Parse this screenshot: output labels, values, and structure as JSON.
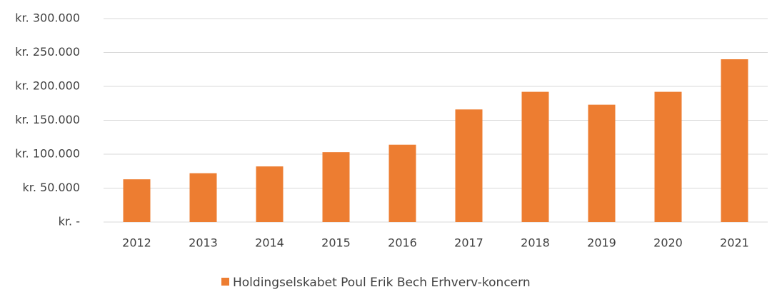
{
  "chart_data": {
    "type": "bar",
    "categories": [
      "2012",
      "2013",
      "2014",
      "2015",
      "2016",
      "2017",
      "2018",
      "2019",
      "2020",
      "2021"
    ],
    "series": [
      {
        "name": "Holdingselskabet Poul Erik Bech Erhverv-koncern",
        "color": "#ed7d31",
        "values": [
          63000,
          72000,
          82000,
          103000,
          114000,
          166000,
          192000,
          173000,
          192000,
          240000
        ]
      }
    ],
    "ylim": [
      0,
      300000
    ],
    "yticks": [
      {
        "value": 0,
        "label": "kr. -"
      },
      {
        "value": 50000,
        "label": "kr. 50.000"
      },
      {
        "value": 100000,
        "label": "kr. 100.000"
      },
      {
        "value": 150000,
        "label": "kr. 150.000"
      },
      {
        "value": 200000,
        "label": "kr. 200.000"
      },
      {
        "value": 250000,
        "label": "kr. 250.000"
      },
      {
        "value": 300000,
        "label": "kr. 300.000"
      }
    ],
    "grid": true,
    "legend": "bottom"
  }
}
